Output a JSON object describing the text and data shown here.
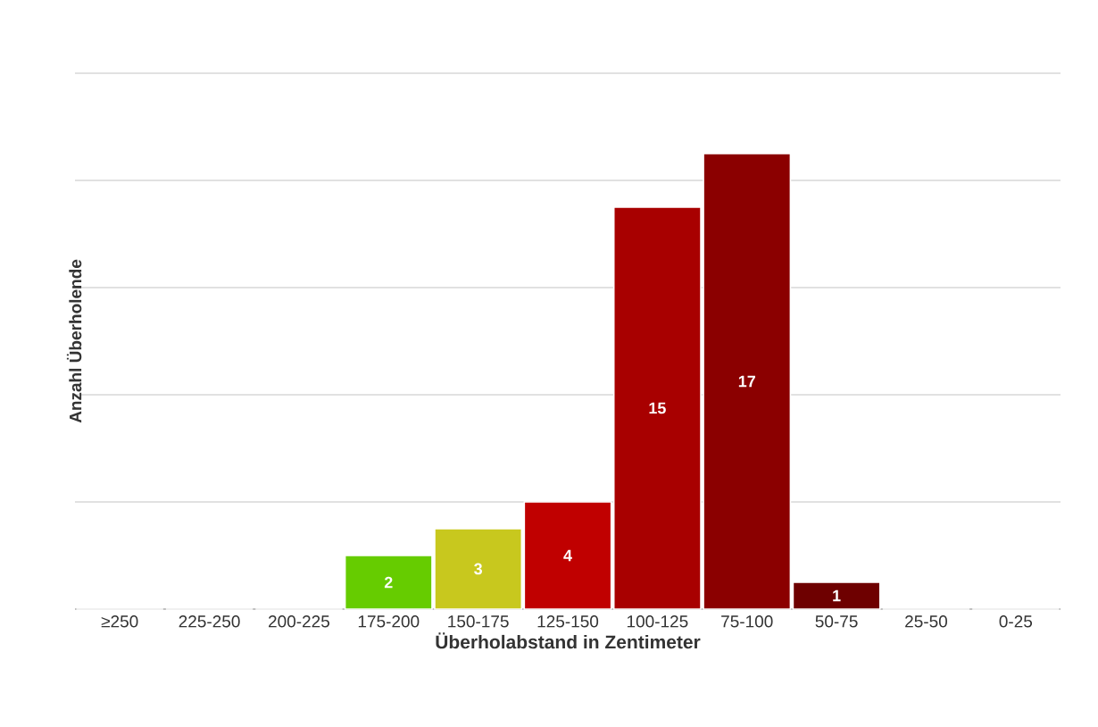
{
  "chart_data": {
    "type": "bar",
    "xlabel": "Überholabstand in Zentimeter",
    "ylabel": "Anzahl Überholende",
    "categories": [
      "≥250",
      "225-250",
      "200-225",
      "175-200",
      "150-175",
      "125-150",
      "100-125",
      "75-100",
      "50-75",
      "25-50",
      "0-25"
    ],
    "values": [
      0,
      0,
      0,
      2,
      3,
      4,
      15,
      17,
      1,
      0,
      0
    ],
    "colors": [
      "#8b0000",
      "#8b0000",
      "#8b0000",
      "#66cc00",
      "#c8c81e",
      "#c00000",
      "#a80000",
      "#8b0000",
      "#6e0000",
      "#6e0000",
      "#6e0000"
    ],
    "value_labels": [
      null,
      null,
      null,
      "2",
      "3",
      "4",
      "15",
      "17",
      "1",
      null,
      null
    ],
    "yticks": [
      {
        "value": 0,
        "label": null
      },
      {
        "value": 4,
        "label": null
      },
      {
        "value": 8,
        "label": null
      },
      {
        "value": 12,
        "label": null
      },
      {
        "value": 16,
        "label": null
      },
      {
        "value": 20,
        "label": null
      }
    ],
    "grid": "y",
    "tick_labels": "x"
  }
}
